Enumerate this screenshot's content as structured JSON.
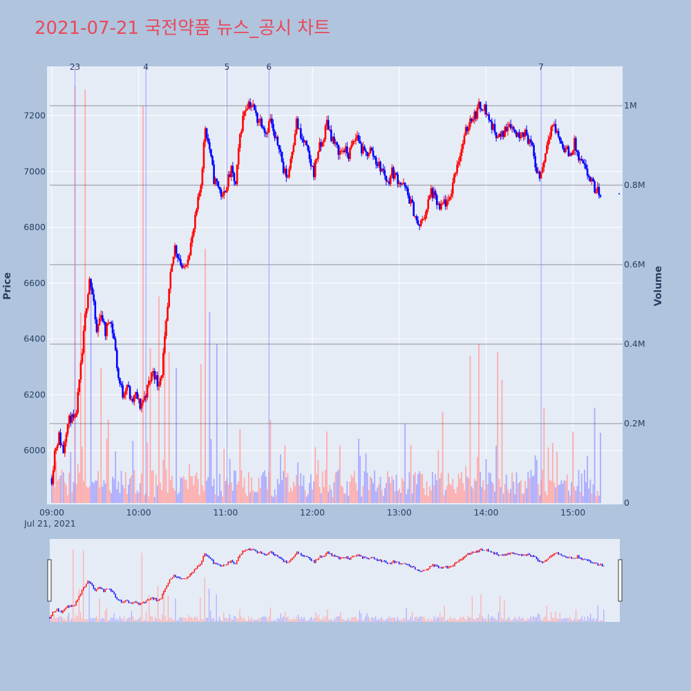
{
  "title": "2021-07-21 국전약품 뉴스_공시 차트",
  "colors": {
    "page_bg": "#b0c4de",
    "plot_bg": "#e5ecf6",
    "grid": "#ffffff",
    "title": "#e8495a",
    "up": "#ff0000",
    "down": "#0000ff",
    "up_volume": "#ffaaaa",
    "down_volume": "#aaaaff",
    "news_line": "#8888ff",
    "volume_grid": "#555555",
    "range_handle": "#333333"
  },
  "y_axis_title": "Price",
  "y2_axis_title": "Volume",
  "x_date_label": "Jul 21, 2021",
  "chart_data": {
    "type": "candlestick",
    "title": "2021-07-21 국전약품 뉴스_공시 차트",
    "x_ticks": [
      "09:00",
      "10:00",
      "11:00",
      "12:00",
      "13:00",
      "14:00",
      "15:00"
    ],
    "y_ticks": [
      6000,
      6200,
      6400,
      6600,
      6800,
      7000,
      7200
    ],
    "y_range": [
      5820,
      7380
    ],
    "y2_ticks": [
      {
        "value": 0,
        "label": "0"
      },
      {
        "value": 200000,
        "label": "0.2M"
      },
      {
        "value": 400000,
        "label": "0.4M"
      },
      {
        "value": 600000,
        "label": "0.6M"
      },
      {
        "value": 800000,
        "label": "0.8M"
      },
      {
        "value": 1000000,
        "label": "1M"
      }
    ],
    "y2_range": [
      0,
      1100000
    ],
    "time_range": [
      "09:00",
      "15:30"
    ],
    "grid": true,
    "price_path": [
      [
        "09:00",
        5900
      ],
      [
        "09:02",
        6000
      ],
      [
        "09:05",
        6050
      ],
      [
        "09:08",
        6000
      ],
      [
        "09:10",
        6080
      ],
      [
        "09:13",
        6120
      ],
      [
        "09:16",
        6100
      ],
      [
        "09:19",
        6240
      ],
      [
        "09:21",
        6350
      ],
      [
        "09:23",
        6480
      ],
      [
        "09:26",
        6620
      ],
      [
        "09:28",
        6560
      ],
      [
        "09:31",
        6420
      ],
      [
        "09:34",
        6500
      ],
      [
        "09:37",
        6420
      ],
      [
        "09:40",
        6480
      ],
      [
        "09:43",
        6400
      ],
      [
        "09:46",
        6260
      ],
      [
        "09:49",
        6200
      ],
      [
        "09:52",
        6240
      ],
      [
        "09:55",
        6170
      ],
      [
        "09:58",
        6200
      ],
      [
        "10:01",
        6160
      ],
      [
        "10:04",
        6190
      ],
      [
        "10:07",
        6240
      ],
      [
        "10:10",
        6290
      ],
      [
        "10:13",
        6240
      ],
      [
        "10:16",
        6280
      ],
      [
        "10:19",
        6450
      ],
      [
        "10:22",
        6620
      ],
      [
        "10:25",
        6730
      ],
      [
        "10:28",
        6690
      ],
      [
        "10:31",
        6640
      ],
      [
        "10:34",
        6700
      ],
      [
        "10:37",
        6760
      ],
      [
        "10:40",
        6860
      ],
      [
        "10:43",
        6960
      ],
      [
        "10:46",
        7160
      ],
      [
        "10:49",
        7080
      ],
      [
        "10:52",
        6970
      ],
      [
        "10:55",
        6950
      ],
      [
        "10:58",
        6900
      ],
      [
        "11:01",
        6960
      ],
      [
        "11:04",
        7000
      ],
      [
        "11:07",
        6950
      ],
      [
        "11:10",
        7130
      ],
      [
        "11:13",
        7220
      ],
      [
        "11:16",
        7250
      ],
      [
        "11:19",
        7230
      ],
      [
        "11:22",
        7190
      ],
      [
        "11:25",
        7180
      ],
      [
        "11:28",
        7140
      ],
      [
        "11:31",
        7190
      ],
      [
        "11:34",
        7110
      ],
      [
        "11:37",
        7100
      ],
      [
        "11:40",
        7000
      ],
      [
        "11:43",
        6980
      ],
      [
        "11:46",
        7080
      ],
      [
        "11:49",
        7180
      ],
      [
        "11:52",
        7120
      ],
      [
        "11:55",
        7100
      ],
      [
        "11:58",
        7040
      ],
      [
        "12:01",
        7000
      ],
      [
        "12:04",
        7080
      ],
      [
        "12:07",
        7100
      ],
      [
        "12:10",
        7180
      ],
      [
        "12:13",
        7130
      ],
      [
        "12:16",
        7090
      ],
      [
        "12:19",
        7070
      ],
      [
        "12:22",
        7080
      ],
      [
        "12:25",
        7060
      ],
      [
        "12:28",
        7100
      ],
      [
        "12:31",
        7130
      ],
      [
        "12:34",
        7080
      ],
      [
        "12:37",
        7060
      ],
      [
        "12:40",
        7080
      ],
      [
        "12:43",
        7050
      ],
      [
        "12:46",
        7020
      ],
      [
        "12:49",
        7000
      ],
      [
        "12:52",
        6960
      ],
      [
        "12:55",
        7000
      ],
      [
        "12:58",
        6980
      ],
      [
        "13:01",
        6960
      ],
      [
        "13:04",
        6940
      ],
      [
        "13:07",
        6900
      ],
      [
        "13:10",
        6860
      ],
      [
        "13:13",
        6800
      ],
      [
        "13:16",
        6820
      ],
      [
        "13:19",
        6870
      ],
      [
        "13:22",
        6930
      ],
      [
        "13:25",
        6900
      ],
      [
        "13:28",
        6860
      ],
      [
        "13:31",
        6890
      ],
      [
        "13:34",
        6880
      ],
      [
        "13:37",
        6960
      ],
      [
        "13:40",
        7030
      ],
      [
        "13:43",
        7080
      ],
      [
        "13:46",
        7140
      ],
      [
        "13:49",
        7190
      ],
      [
        "13:52",
        7200
      ],
      [
        "13:55",
        7230
      ],
      [
        "13:58",
        7240
      ],
      [
        "14:01",
        7200
      ],
      [
        "14:04",
        7160
      ],
      [
        "14:07",
        7140
      ],
      [
        "14:10",
        7120
      ],
      [
        "14:13",
        7150
      ],
      [
        "14:16",
        7180
      ],
      [
        "14:19",
        7150
      ],
      [
        "14:22",
        7130
      ],
      [
        "14:25",
        7150
      ],
      [
        "14:28",
        7130
      ],
      [
        "14:31",
        7100
      ],
      [
        "14:34",
        7020
      ],
      [
        "14:37",
        6980
      ],
      [
        "14:40",
        7040
      ],
      [
        "14:43",
        7130
      ],
      [
        "14:46",
        7170
      ],
      [
        "14:49",
        7140
      ],
      [
        "14:52",
        7100
      ],
      [
        "14:55",
        7080
      ],
      [
        "14:58",
        7060
      ],
      [
        "15:01",
        7100
      ],
      [
        "15:04",
        7040
      ],
      [
        "15:07",
        7020
      ],
      [
        "15:10",
        6990
      ],
      [
        "15:13",
        6960
      ],
      [
        "15:16",
        6930
      ],
      [
        "15:19",
        6920
      ]
    ],
    "volume_spikes": [
      [
        "09:16",
        1050000
      ],
      [
        "09:20",
        480000
      ],
      [
        "09:23",
        1040000
      ],
      [
        "09:27",
        560000
      ],
      [
        "09:34",
        340000
      ],
      [
        "09:39",
        210000
      ],
      [
        "10:03",
        1000000
      ],
      [
        "10:08",
        390000
      ],
      [
        "10:14",
        520000
      ],
      [
        "10:18",
        460000
      ],
      [
        "10:21",
        380000
      ],
      [
        "10:26",
        340000
      ],
      [
        "10:43",
        350000
      ],
      [
        "10:46",
        640000
      ],
      [
        "10:49",
        480000
      ],
      [
        "10:54",
        400000
      ],
      [
        "11:31",
        210000
      ],
      [
        "12:10",
        180000
      ],
      [
        "13:04",
        200000
      ],
      [
        "13:30",
        230000
      ],
      [
        "13:49",
        370000
      ],
      [
        "13:55",
        400000
      ],
      [
        "14:08",
        380000
      ],
      [
        "14:11",
        310000
      ],
      [
        "14:40",
        240000
      ],
      [
        "15:00",
        180000
      ],
      [
        "15:15",
        240000
      ],
      [
        "15:22",
        290000
      ]
    ],
    "news_markers": [
      {
        "label": "23",
        "time": "09:16"
      },
      {
        "label": "4",
        "time": "10:05"
      },
      {
        "label": "5",
        "time": "11:01"
      },
      {
        "label": "6",
        "time": "11:30"
      },
      {
        "label": "7",
        "time": "14:38"
      }
    ],
    "last_point_marker": [
      "15:30",
      6920
    ],
    "range_slider": true
  }
}
